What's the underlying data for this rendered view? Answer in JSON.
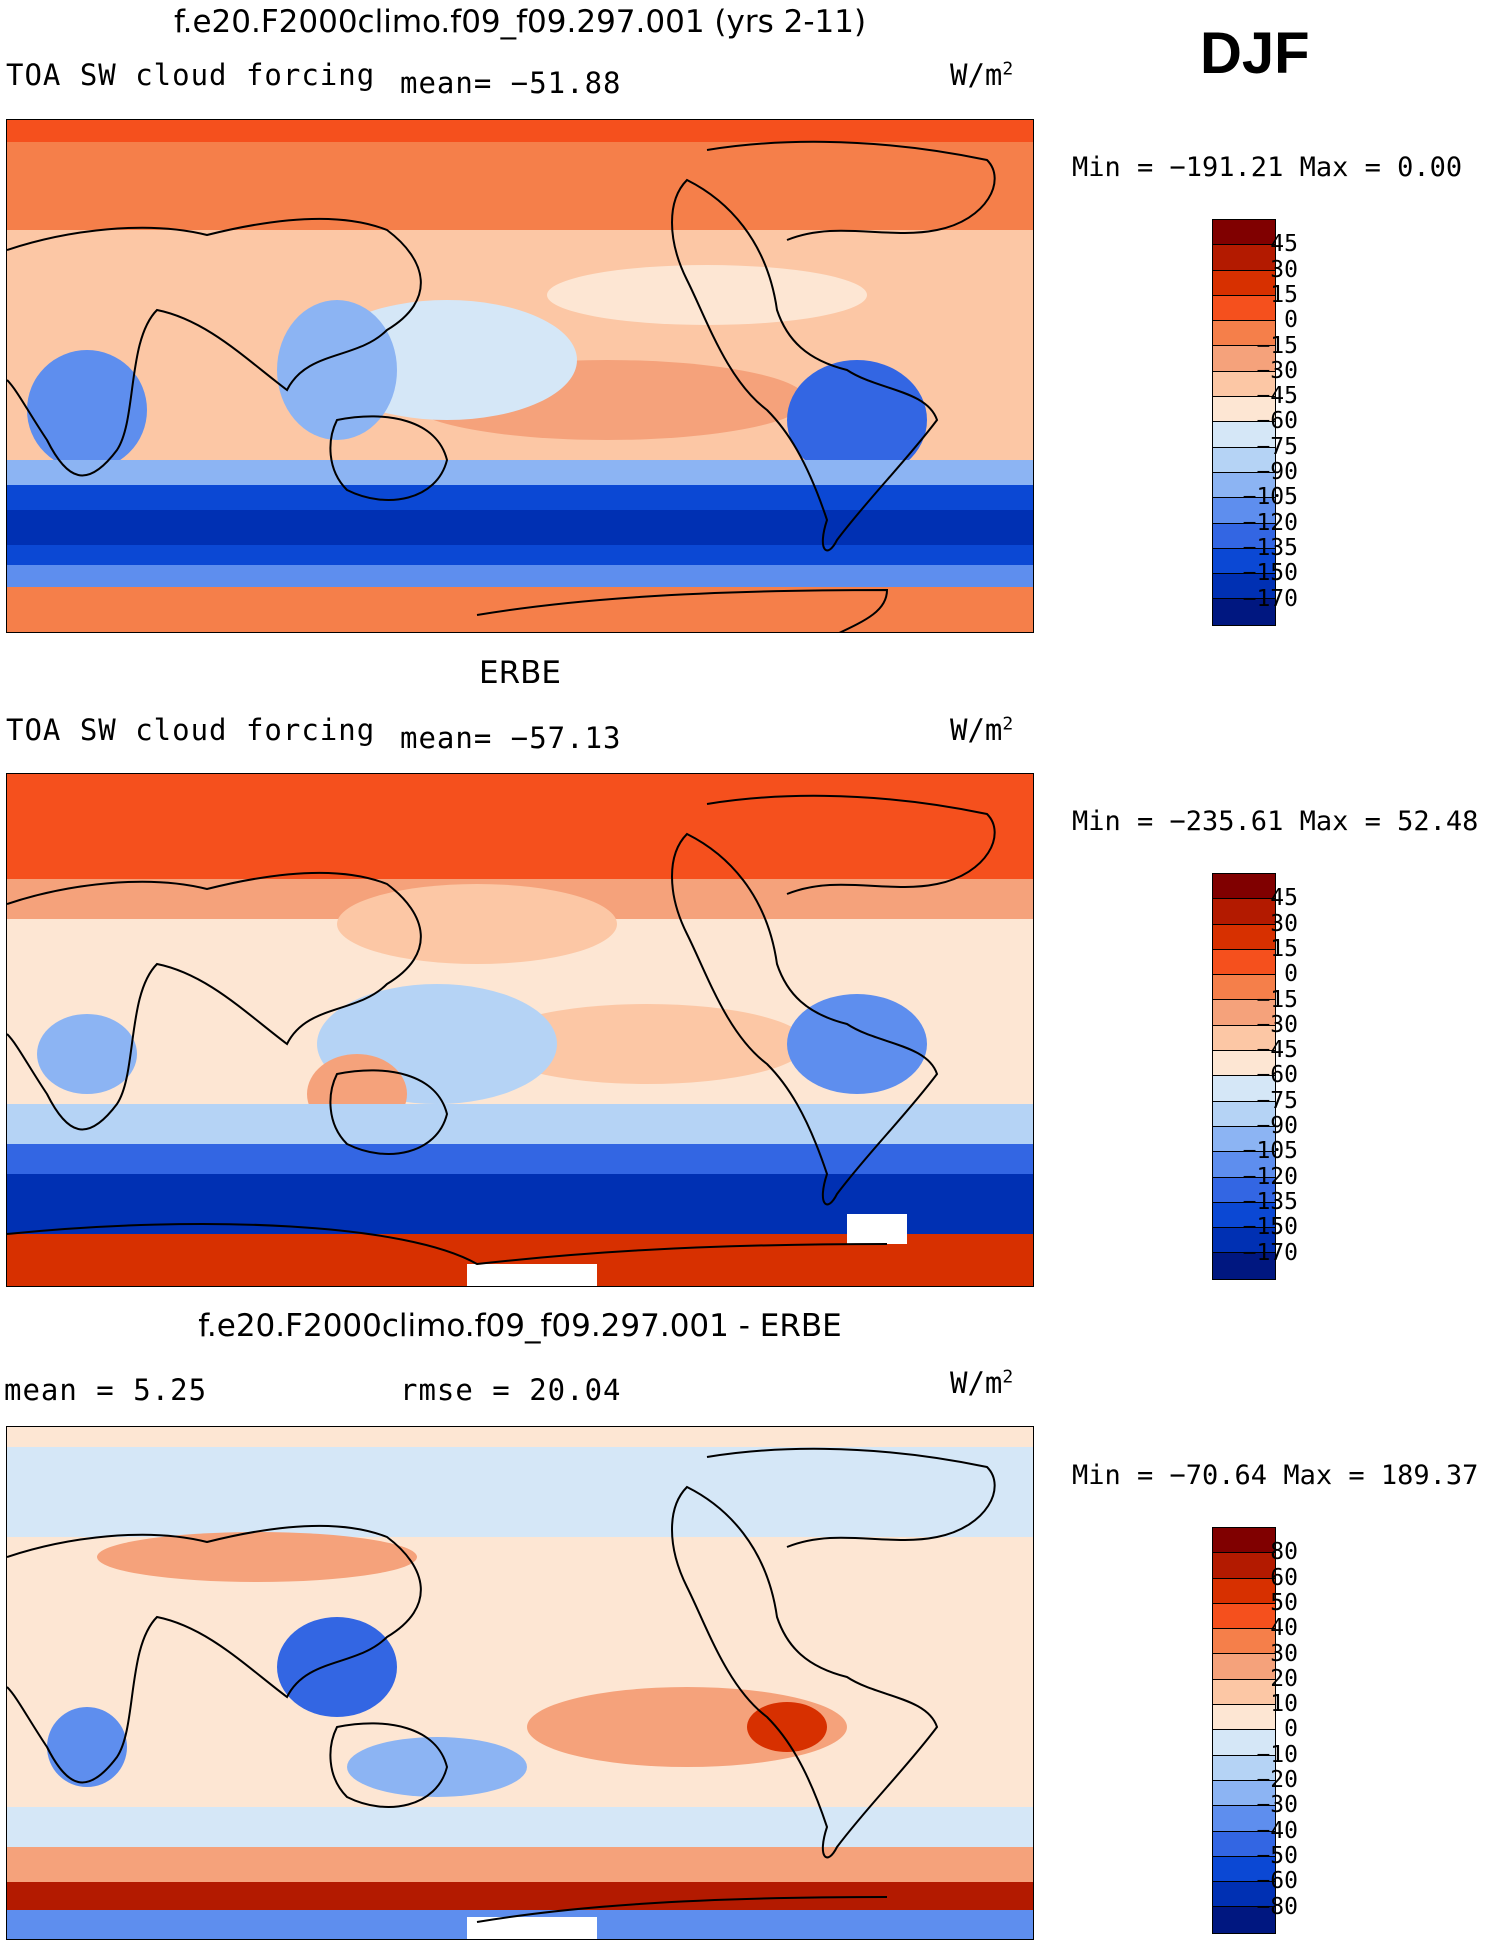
{
  "header": {
    "season": "DJF"
  },
  "panels": [
    {
      "title": "f.e20.F2000climo.f09_f09.297.001 (yrs 2-11)",
      "variable": "TOA SW cloud forcing",
      "mean_text": "mean=  −51.88",
      "units_base": "W/m",
      "units_exp": "2",
      "minmax": "Min  =  −191.21  Max  =    0.00",
      "colorbar": {
        "labels": [
          "45",
          "30",
          "15",
          "0",
          "−15",
          "−30",
          "−45",
          "−60",
          "−75",
          "−90",
          "−105",
          "−120",
          "−135",
          "−150",
          "−170"
        ],
        "colors": [
          "#800000",
          "#b31a00",
          "#d73000",
          "#f5501d",
          "#f57f4a",
          "#f5a27b",
          "#fcc7a5",
          "#fde6d3",
          "#d5e7f7",
          "#b5d3f5",
          "#8cb4f3",
          "#5e8eee",
          "#3366e3",
          "#0b48d4",
          "#0030b3",
          "#001780"
        ]
      },
      "map_fields": {
        "ocean_base": "#fcc7a5",
        "north_band": "#f57f4a",
        "south_band": "#0b48d4",
        "antarctic": "#f57f4a"
      }
    },
    {
      "title": "ERBE",
      "variable": "TOA SW cloud forcing",
      "mean_text": "mean=  −57.13",
      "units_base": "W/m",
      "units_exp": "2",
      "minmax": "Min  =  −235.61  Max  =   52.48",
      "colorbar": {
        "labels": [
          "45",
          "30",
          "15",
          "0",
          "−15",
          "−30",
          "−45",
          "−60",
          "−75",
          "−90",
          "−105",
          "−120",
          "−135",
          "−150",
          "−170"
        ],
        "colors": [
          "#800000",
          "#b31a00",
          "#d73000",
          "#f5501d",
          "#f57f4a",
          "#f5a27b",
          "#fcc7a5",
          "#fde6d3",
          "#d5e7f7",
          "#b5d3f5",
          "#8cb4f3",
          "#5e8eee",
          "#3366e3",
          "#0b48d4",
          "#0030b3",
          "#001780"
        ]
      },
      "map_fields": {
        "ocean_base": "#fde6d3",
        "north_band": "#f5501d",
        "south_band": "#0030b3",
        "antarctic": "#d73000"
      }
    },
    {
      "title": "f.e20.F2000climo.f09_f09.297.001 - ERBE",
      "mean_text": "mean  =     5.25",
      "rmse_text": "rmse  =    20.04",
      "units_base": "W/m",
      "units_exp": "2",
      "minmax": "Min  =  −70.64  Max  =  189.37",
      "colorbar": {
        "labels": [
          "80",
          "60",
          "50",
          "40",
          "30",
          "20",
          "10",
          "0",
          "−10",
          "−20",
          "−30",
          "−40",
          "−50",
          "−60",
          "−80"
        ],
        "colors": [
          "#800000",
          "#b31a00",
          "#d73000",
          "#f5501d",
          "#f57f4a",
          "#f5a27b",
          "#fcc7a5",
          "#fde6d3",
          "#d5e7f7",
          "#b5d3f5",
          "#8cb4f3",
          "#5e8eee",
          "#3366e3",
          "#0b48d4",
          "#0030b3",
          "#001780"
        ]
      },
      "map_fields": {
        "ocean_base": "#fde6d3",
        "north_band": "#d5e7f7",
        "south_band": "#b31a00",
        "antarctic": "#5e8eee"
      }
    }
  ]
}
